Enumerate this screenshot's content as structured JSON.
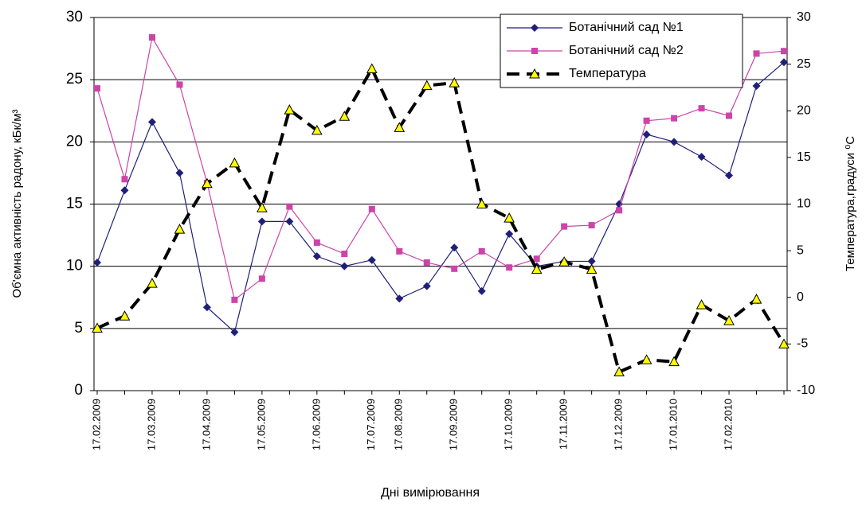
{
  "chart_data": {
    "type": "line",
    "x_label": "Дні вимірювання",
    "y_label": "Об'ємна активність радону, кБк/м³",
    "y2_label": "Температура,градуси ⁰С",
    "categories": [
      "17.02.2009",
      null,
      "17.03.2009",
      null,
      "17.04.2009",
      null,
      "17.05.2009",
      null,
      "17.06.2009",
      null,
      "17.07.2009",
      "17.08.2009",
      null,
      "17.09.2009",
      null,
      "17.10.2009",
      null,
      "17.11.2009",
      null,
      "17.12.2009",
      null,
      "17.01.2010",
      null,
      "17.02.2010",
      null,
      null
    ],
    "ylim": [
      0,
      30
    ],
    "yticks": [
      0,
      5,
      10,
      15,
      20,
      25,
      30
    ],
    "y2lim": [
      -10,
      30
    ],
    "y2ticks": [
      -10,
      -5,
      0,
      5,
      10,
      15,
      20,
      25,
      30
    ],
    "grid": true,
    "legend": "top-right",
    "series": [
      {
        "name": "Ботанічний сад №1",
        "color": "#1f1f7a",
        "marker": "diamond",
        "line_style": "solid",
        "values": [
          10.3,
          16.1,
          21.6,
          17.5,
          6.7,
          4.7,
          13.6,
          13.6,
          10.8,
          10.0,
          10.5,
          7.4,
          8.4,
          11.5,
          8.0,
          12.6,
          10.0,
          10.4,
          10.4,
          15.0,
          20.6,
          20.0,
          18.8,
          17.3,
          24.5,
          26.4
        ]
      },
      {
        "name": "Ботанічний сад №2",
        "color": "#cc44aa",
        "marker": "square",
        "line_style": "solid",
        "values": [
          24.3,
          17.0,
          28.4,
          24.6,
          16.7,
          7.3,
          9.0,
          14.8,
          11.9,
          11.0,
          14.6,
          11.2,
          10.3,
          9.8,
          11.2,
          9.9,
          10.6,
          13.2,
          13.3,
          14.5,
          21.7,
          21.9,
          22.7,
          22.1,
          27.1,
          27.3
        ]
      },
      {
        "name": "Температура",
        "color": "#000000",
        "marker": "triangle",
        "marker_color": "#ffff00",
        "line_style": "dashed",
        "axis": "y2",
        "values": [
          -3.3,
          -2.0,
          1.5,
          7.3,
          12.2,
          14.4,
          9.6,
          20.1,
          17.9,
          19.4,
          24.5,
          18.2,
          22.7,
          23.0,
          10.0,
          8.5,
          3.0,
          3.8,
          3.0,
          -8.0,
          -6.7,
          -6.9,
          -0.8,
          -2.5,
          -0.2,
          -5.0
        ]
      }
    ]
  }
}
